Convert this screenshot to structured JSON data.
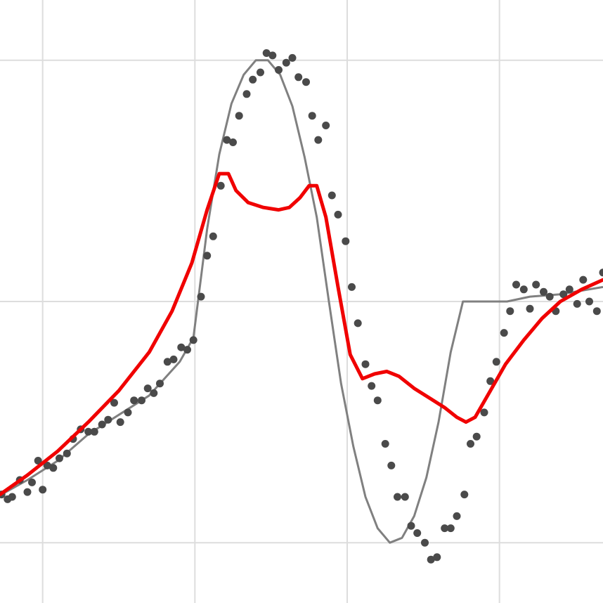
{
  "chart_data": {
    "type": "scatter",
    "title": "",
    "xlabel": "",
    "ylabel": "",
    "xlim": [
      -0.28,
      3.68
    ],
    "ylim": [
      -1.25,
      1.25
    ],
    "grid": true,
    "xgrid": [
      0,
      1,
      2,
      3
    ],
    "ygrid": [
      -1,
      0,
      1
    ],
    "colors": {
      "points": "#4a4a4a",
      "true_curve": "#808080",
      "fit_curve": "#f00000",
      "grid": "#dddddd"
    },
    "series": [
      {
        "kind": "points",
        "x": [
          -0.27,
          -0.23,
          -0.2,
          -0.15,
          -0.1,
          -0.07,
          -0.03,
          0.0,
          0.03,
          0.07,
          0.11,
          0.16,
          0.2,
          0.25,
          0.3,
          0.34,
          0.39,
          0.43,
          0.47,
          0.51,
          0.56,
          0.6,
          0.65,
          0.69,
          0.73,
          0.77,
          0.82,
          0.86,
          0.91,
          0.95,
          0.99,
          1.04,
          1.08,
          1.12,
          1.17,
          1.21,
          1.25,
          1.29,
          1.34,
          1.38,
          1.43,
          1.47,
          1.51,
          1.55,
          1.6,
          1.64,
          1.68,
          1.73,
          1.77,
          1.81,
          1.86,
          1.9,
          1.94,
          1.99,
          2.03,
          2.07,
          2.12,
          2.16,
          2.2,
          2.25,
          2.29,
          2.33,
          2.38,
          2.42,
          2.46,
          2.51,
          2.55,
          2.59,
          2.64,
          2.68,
          2.72,
          2.77,
          2.81,
          2.85,
          2.9,
          2.94,
          2.98,
          3.03,
          3.07,
          3.11,
          3.16,
          3.2,
          3.24,
          3.29,
          3.33,
          3.37,
          3.42,
          3.46,
          3.51,
          3.55,
          3.59,
          3.64,
          3.68
        ],
        "y": [
          -0.8,
          -0.82,
          -0.81,
          -0.74,
          -0.79,
          -0.75,
          -0.66,
          -0.78,
          -0.68,
          -0.69,
          -0.65,
          -0.63,
          -0.57,
          -0.53,
          -0.54,
          -0.54,
          -0.51,
          -0.49,
          -0.42,
          -0.5,
          -0.46,
          -0.41,
          -0.41,
          -0.36,
          -0.38,
          -0.34,
          -0.25,
          -0.24,
          -0.19,
          -0.2,
          -0.16,
          0.02,
          0.19,
          0.27,
          0.48,
          0.67,
          0.66,
          0.77,
          0.86,
          0.92,
          0.95,
          1.03,
          1.02,
          0.96,
          0.99,
          1.01,
          0.93,
          0.91,
          0.77,
          0.67,
          0.73,
          0.44,
          0.36,
          0.25,
          0.06,
          -0.09,
          -0.26,
          -0.35,
          -0.41,
          -0.59,
          -0.68,
          -0.81,
          -0.81,
          -0.93,
          -0.96,
          -1.0,
          -1.07,
          -1.06,
          -0.94,
          -0.94,
          -0.89,
          -0.8,
          -0.59,
          -0.56,
          -0.46,
          -0.33,
          -0.25,
          -0.13,
          -0.04,
          0.07,
          0.05,
          -0.03,
          0.07,
          0.04,
          0.02,
          -0.04,
          0.03,
          0.05,
          -0.01,
          0.09,
          0.0,
          -0.04,
          0.12
        ]
      },
      {
        "kind": "true_curve",
        "x": [
          -0.27,
          -0.1,
          0.1,
          0.3,
          0.5,
          0.7,
          0.9,
          0.99,
          1.08,
          1.16,
          1.24,
          1.32,
          1.4,
          1.48,
          1.56,
          1.64,
          1.72,
          1.8,
          1.88,
          1.96,
          2.04,
          2.12,
          2.2,
          2.28,
          2.36,
          2.44,
          2.52,
          2.6,
          2.68,
          2.76,
          2.84,
          2.92,
          2.98,
          3.05,
          3.2,
          3.4,
          3.68
        ],
        "y": [
          -0.8,
          -0.74,
          -0.66,
          -0.55,
          -0.47,
          -0.39,
          -0.25,
          -0.15,
          0.3,
          0.61,
          0.82,
          0.94,
          1.0,
          1.0,
          0.94,
          0.81,
          0.6,
          0.35,
          0.0,
          -0.34,
          -0.6,
          -0.81,
          -0.94,
          -1.0,
          -0.98,
          -0.89,
          -0.73,
          -0.5,
          -0.21,
          0.0,
          0.0,
          0.0,
          0.0,
          0.0,
          0.02,
          0.03,
          0.06
        ]
      },
      {
        "kind": "fit_curve",
        "x": [
          -0.28,
          -0.1,
          0.1,
          0.3,
          0.5,
          0.7,
          0.85,
          0.98,
          1.08,
          1.16,
          1.22,
          1.27,
          1.35,
          1.45,
          1.55,
          1.62,
          1.69,
          1.75,
          1.8,
          1.86,
          1.94,
          2.02,
          2.1,
          2.18,
          2.26,
          2.34,
          2.44,
          2.54,
          2.64,
          2.72,
          2.78,
          2.84,
          2.94,
          3.04,
          3.16,
          3.28,
          3.4,
          3.54,
          3.68
        ],
        "y": [
          -0.8,
          -0.72,
          -0.62,
          -0.5,
          -0.37,
          -0.21,
          -0.04,
          0.16,
          0.38,
          0.53,
          0.53,
          0.46,
          0.41,
          0.39,
          0.38,
          0.39,
          0.43,
          0.48,
          0.48,
          0.35,
          0.06,
          -0.22,
          -0.32,
          -0.3,
          -0.29,
          -0.31,
          -0.36,
          -0.4,
          -0.44,
          -0.48,
          -0.5,
          -0.48,
          -0.37,
          -0.26,
          -0.16,
          -0.07,
          0.0,
          0.05,
          0.09
        ]
      }
    ]
  }
}
